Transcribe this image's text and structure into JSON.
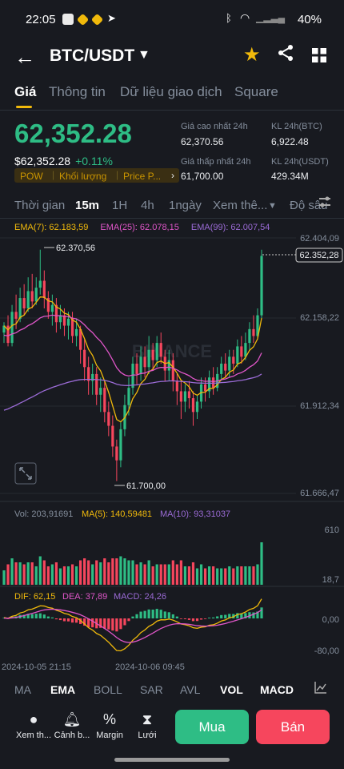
{
  "status": {
    "time": "22:05",
    "battery": "40%"
  },
  "header": {
    "back": "←",
    "pair": "BTC/USDT",
    "caret": "▼",
    "star": "★",
    "share": "⋖"
  },
  "tabs": [
    "Giá",
    "Thông tin",
    "Dữ liệu giao dịch",
    "Square"
  ],
  "ticker": {
    "last": "62,352.28",
    "usd": "$62,352.28",
    "change": "+0.11%",
    "badges": [
      "POW",
      "Khối lượng",
      "Price P..."
    ],
    "high_label": "Giá cao nhất 24h",
    "high": "62,370.56",
    "low_label": "Giá thấp nhất 24h",
    "low": "61,700.00",
    "vol_btc_label": "KL 24h(BTC)",
    "vol_btc": "6,922.48",
    "vol_usdt_label": "KL 24h(USDT)",
    "vol_usdt": "429.34M"
  },
  "timeframes": [
    "Thời gian",
    "15m",
    "1H",
    "4h",
    "1ngày",
    "Xem thê...",
    "Độ sâu"
  ],
  "ema_legend": {
    "ema7": "EMA(7): 62.183,59",
    "ema25": "EMA(25): 62.078,15",
    "ema99": "EMA(99): 62.007,54"
  },
  "price_axis": [
    "62.404,09",
    "62.158,22",
    "61.912,34",
    "61.666,47"
  ],
  "price_tag": "62.352,28",
  "marks": {
    "high": "62.370,56",
    "low": "61.700,00"
  },
  "vol_legend": {
    "vol": "Vol: 203,91691",
    "ma5": "MA(5): 140,59481",
    "ma10": "MA(10): 93,31037"
  },
  "vol_axis": [
    "610",
    "18,7"
  ],
  "macd_legend": {
    "dif": "DIF: 62,15",
    "dea": "DEA: 37,89",
    "macd": "MACD: 24,26"
  },
  "macd_axis": [
    "0,00",
    "-80,00"
  ],
  "dates": [
    "2024-10-05 21:15",
    "2024-10-06 09:45"
  ],
  "watermark": "BINANCE",
  "indicators": [
    "MA",
    "EMA",
    "BOLL",
    "SAR",
    "AVL",
    "VOL",
    "MACD"
  ],
  "actions": [
    "Xem th...",
    "Cảnh b...",
    "Margin",
    "Lưới"
  ],
  "buy": "Mua",
  "sell": "Bán",
  "colors": {
    "up": "#2ebd85",
    "down": "#f6465d",
    "ema7": "#f0b90b",
    "ema25": "#e056c9",
    "ema99": "#9b6bd6",
    "accent": "#f0b90b"
  },
  "chart_data": {
    "type": "candlestick",
    "interval": "15m",
    "ylim": [
      61666.47,
      62404.09
    ],
    "high": 62370.56,
    "low": 61700.0,
    "last": 62352.28,
    "ohlc": [
      [
        62130,
        62150,
        62100,
        62160
      ],
      [
        62150,
        62100,
        62090,
        62180
      ],
      [
        62100,
        62190,
        62090,
        62210
      ],
      [
        62190,
        62170,
        62140,
        62240
      ],
      [
        62170,
        62230,
        62160,
        62260
      ],
      [
        62230,
        62200,
        62180,
        62270
      ],
      [
        62200,
        62250,
        62190,
        62290
      ],
      [
        62250,
        62220,
        62200,
        62300
      ],
      [
        62220,
        62260,
        62210,
        62290
      ],
      [
        62260,
        62280,
        62240,
        62370
      ],
      [
        62280,
        62230,
        62200,
        62310
      ],
      [
        62230,
        62190,
        62170,
        62250
      ],
      [
        62190,
        62210,
        62150,
        62240
      ],
      [
        62210,
        62160,
        62130,
        62230
      ],
      [
        62160,
        62180,
        62140,
        62210
      ],
      [
        62180,
        62150,
        62120,
        62200
      ],
      [
        62150,
        62170,
        62110,
        62190
      ],
      [
        62170,
        62120,
        62100,
        62190
      ],
      [
        62120,
        62140,
        62090,
        62170
      ],
      [
        62140,
        62080,
        62040,
        62150
      ],
      [
        62080,
        62030,
        61990,
        62110
      ],
      [
        62030,
        61990,
        61950,
        62060
      ],
      [
        61990,
        62010,
        61950,
        62040
      ],
      [
        62010,
        61950,
        61920,
        62030
      ],
      [
        61950,
        61970,
        61900,
        62000
      ],
      [
        61970,
        61900,
        61870,
        61990
      ],
      [
        61900,
        61860,
        61830,
        61930
      ],
      [
        61860,
        61800,
        61770,
        61890
      ],
      [
        61800,
        61760,
        61700,
        61820
      ],
      [
        61760,
        61850,
        61740,
        61870
      ],
      [
        61850,
        61920,
        61830,
        61950
      ],
      [
        61920,
        61970,
        61890,
        62000
      ],
      [
        61970,
        62040,
        61950,
        62060
      ],
      [
        62040,
        62010,
        61980,
        62070
      ],
      [
        62010,
        62060,
        61990,
        62090
      ],
      [
        62060,
        62030,
        62000,
        62090
      ],
      [
        62030,
        62080,
        62010,
        62120
      ],
      [
        62080,
        62050,
        62020,
        62100
      ],
      [
        62050,
        62100,
        62030,
        62120
      ],
      [
        62100,
        62060,
        62040,
        62130
      ],
      [
        62060,
        62020,
        61990,
        62080
      ],
      [
        62020,
        62050,
        61990,
        62080
      ],
      [
        62050,
        61990,
        61960,
        62070
      ],
      [
        61990,
        61960,
        61920,
        62010
      ],
      [
        61960,
        61930,
        61880,
        61990
      ],
      [
        61930,
        61960,
        61900,
        61980
      ],
      [
        61960,
        61940,
        61910,
        61990
      ],
      [
        61940,
        61900,
        61860,
        61960
      ],
      [
        61900,
        61930,
        61880,
        61950
      ],
      [
        61930,
        61980,
        61910,
        62000
      ],
      [
        61980,
        61960,
        61930,
        62000
      ],
      [
        61960,
        62000,
        61940,
        62020
      ],
      [
        62000,
        61970,
        61950,
        62030
      ],
      [
        61970,
        62010,
        61960,
        62030
      ],
      [
        62010,
        62040,
        61990,
        62060
      ],
      [
        62040,
        62020,
        62000,
        62070
      ],
      [
        62020,
        62060,
        62000,
        62080
      ],
      [
        62060,
        62040,
        62010,
        62080
      ],
      [
        62040,
        62090,
        62030,
        62110
      ],
      [
        62090,
        62060,
        62040,
        62120
      ],
      [
        62060,
        62100,
        62050,
        62130
      ],
      [
        62100,
        62140,
        62080,
        62160
      ],
      [
        62140,
        62120,
        62100,
        62180
      ],
      [
        62120,
        62180,
        62110,
        62200
      ],
      [
        62180,
        62352,
        62170,
        62370
      ]
    ]
  }
}
